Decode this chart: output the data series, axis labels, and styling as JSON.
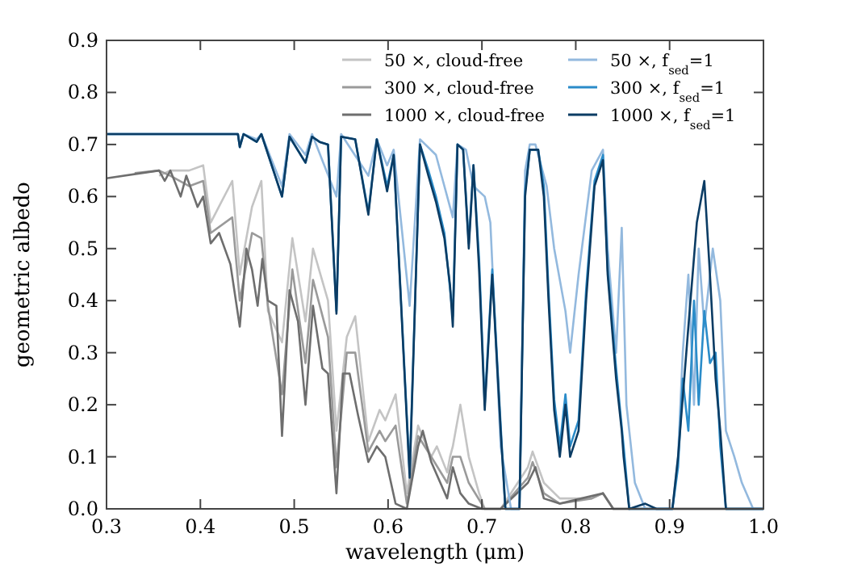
{
  "chart_data": {
    "type": "line",
    "xlabel": "wavelength (μm)",
    "ylabel": "geometric albedo",
    "xlim": [
      0.3,
      1.0
    ],
    "ylim": [
      0.0,
      0.9
    ],
    "xticks": [
      {
        "value": 0.3,
        "label": "0.3"
      },
      {
        "value": 0.4,
        "label": "0.4"
      },
      {
        "value": 0.5,
        "label": "0.5"
      },
      {
        "value": 0.6,
        "label": "0.6"
      },
      {
        "value": 0.7,
        "label": "0.7"
      },
      {
        "value": 0.8,
        "label": "0.8"
      },
      {
        "value": 0.9,
        "label": "0.9"
      },
      {
        "value": 1.0,
        "label": "1.0"
      }
    ],
    "yticks": [
      {
        "value": 0,
        "label": "0.0"
      },
      {
        "value": 0.1,
        "label": "0.1"
      },
      {
        "value": 0.2,
        "label": "0.2"
      },
      {
        "value": 0.3,
        "label": "0.3"
      },
      {
        "value": 0.4,
        "label": "0.4"
      },
      {
        "value": 0.5,
        "label": "0.5"
      },
      {
        "value": 0.6,
        "label": "0.6"
      },
      {
        "value": 0.7,
        "label": "0.7"
      },
      {
        "value": 0.8,
        "label": "0.8"
      },
      {
        "value": 0.9,
        "label": "0.9"
      }
    ],
    "grid": false,
    "legend": "top right",
    "marker": "none",
    "line_style": "solid",
    "series": [
      {
        "name": "50 ×, cloud-free",
        "color": "#c4c4c4",
        "x": [
          0.356,
          0.368,
          0.388,
          0.403,
          0.411,
          0.434,
          0.442,
          0.455,
          0.465,
          0.472,
          0.487,
          0.498,
          0.512,
          0.52,
          0.536,
          0.545,
          0.556,
          0.565,
          0.579,
          0.591,
          0.597,
          0.608,
          0.62,
          0.632,
          0.646,
          0.652,
          0.663,
          0.666,
          0.669,
          0.677,
          0.686,
          0.697,
          0.703,
          0.72,
          0.749,
          0.754,
          0.766,
          0.783,
          0.817,
          0.829,
          0.84,
          0.9,
          1.0
        ],
        "values": [
          0.64,
          0.65,
          0.65,
          0.66,
          0.55,
          0.63,
          0.45,
          0.58,
          0.63,
          0.38,
          0.32,
          0.52,
          0.36,
          0.5,
          0.4,
          0.15,
          0.33,
          0.37,
          0.13,
          0.19,
          0.17,
          0.22,
          0.03,
          0.16,
          0.1,
          0.12,
          0.07,
          0.1,
          0.12,
          0.2,
          0.1,
          0.03,
          0.0,
          0.0,
          0.08,
          0.11,
          0.05,
          0.02,
          0.02,
          0.03,
          0.0,
          0.0,
          0.0
        ]
      },
      {
        "name": "300 ×, cloud-free",
        "color": "#9a9a9a",
        "x": [
          0.33,
          0.356,
          0.368,
          0.388,
          0.403,
          0.411,
          0.434,
          0.442,
          0.455,
          0.465,
          0.472,
          0.487,
          0.498,
          0.512,
          0.52,
          0.536,
          0.545,
          0.556,
          0.565,
          0.579,
          0.591,
          0.597,
          0.608,
          0.62,
          0.632,
          0.646,
          0.663,
          0.669,
          0.677,
          0.686,
          0.703,
          0.72,
          0.749,
          0.754,
          0.766,
          0.783,
          0.817,
          0.829,
          0.84,
          0.9,
          1.0
        ],
        "values": [
          0.645,
          0.65,
          0.64,
          0.62,
          0.63,
          0.53,
          0.56,
          0.4,
          0.53,
          0.52,
          0.39,
          0.22,
          0.46,
          0.28,
          0.44,
          0.33,
          0.08,
          0.3,
          0.3,
          0.11,
          0.15,
          0.13,
          0.16,
          0.01,
          0.14,
          0.1,
          0.05,
          0.1,
          0.1,
          0.05,
          0.0,
          0.0,
          0.06,
          0.09,
          0.03,
          0.01,
          0.02,
          0.03,
          0.0,
          0.0,
          0.0
        ]
      },
      {
        "name": "1000 ×, cloud-free",
        "color": "#6e6e6e",
        "x": [
          0.3,
          0.356,
          0.362,
          0.368,
          0.379,
          0.385,
          0.397,
          0.403,
          0.411,
          0.42,
          0.432,
          0.442,
          0.449,
          0.455,
          0.461,
          0.466,
          0.472,
          0.481,
          0.487,
          0.495,
          0.504,
          0.512,
          0.52,
          0.53,
          0.536,
          0.545,
          0.552,
          0.559,
          0.568,
          0.579,
          0.588,
          0.597,
          0.608,
          0.62,
          0.632,
          0.637,
          0.646,
          0.663,
          0.669,
          0.677,
          0.686,
          0.7,
          0.72,
          0.749,
          0.757,
          0.766,
          0.783,
          0.806,
          0.829,
          0.84,
          0.9,
          1.0
        ],
        "values": [
          0.635,
          0.65,
          0.63,
          0.65,
          0.6,
          0.64,
          0.58,
          0.6,
          0.51,
          0.53,
          0.47,
          0.35,
          0.5,
          0.46,
          0.39,
          0.48,
          0.4,
          0.39,
          0.14,
          0.42,
          0.36,
          0.2,
          0.39,
          0.27,
          0.26,
          0.03,
          0.26,
          0.26,
          0.18,
          0.09,
          0.12,
          0.1,
          0.01,
          0.0,
          0.12,
          0.15,
          0.09,
          0.02,
          0.08,
          0.03,
          0.01,
          0.0,
          0.0,
          0.05,
          0.08,
          0.02,
          0.01,
          0.02,
          0.03,
          0.0,
          0.0,
          0.0
        ]
      },
      {
        "name": "50 ×, f$_{sed}$=1",
        "color": "#93b9de",
        "x": [
          0.3,
          0.44,
          0.442,
          0.446,
          0.46,
          0.465,
          0.487,
          0.495,
          0.512,
          0.519,
          0.545,
          0.55,
          0.579,
          0.588,
          0.599,
          0.606,
          0.623,
          0.634,
          0.651,
          0.669,
          0.674,
          0.683,
          0.691,
          0.703,
          0.709,
          0.72,
          0.731,
          0.74,
          0.746,
          0.751,
          0.757,
          0.769,
          0.777,
          0.789,
          0.794,
          0.803,
          0.817,
          0.829,
          0.834,
          0.843,
          0.849,
          0.854,
          0.863,
          0.874,
          0.903,
          0.909,
          0.914,
          0.92,
          0.926,
          0.931,
          0.937,
          0.946,
          0.954,
          0.96,
          0.969,
          0.977,
          0.989,
          1.0
        ],
        "values": [
          0.72,
          0.72,
          0.7,
          0.72,
          0.71,
          0.72,
          0.62,
          0.72,
          0.68,
          0.72,
          0.6,
          0.72,
          0.64,
          0.71,
          0.66,
          0.69,
          0.39,
          0.71,
          0.68,
          0.56,
          0.7,
          0.69,
          0.62,
          0.6,
          0.55,
          0.12,
          0.0,
          0.0,
          0.65,
          0.7,
          0.7,
          0.62,
          0.5,
          0.38,
          0.3,
          0.45,
          0.65,
          0.69,
          0.5,
          0.3,
          0.54,
          0.2,
          0.05,
          0.0,
          0.0,
          0.1,
          0.3,
          0.45,
          0.2,
          0.5,
          0.35,
          0.5,
          0.4,
          0.15,
          0.1,
          0.05,
          0.0,
          0.0
        ]
      },
      {
        "name": "300 ×, f$_{sed}$=1",
        "color": "#2b8cc9",
        "x": [
          0.3,
          0.44,
          0.442,
          0.446,
          0.46,
          0.465,
          0.487,
          0.495,
          0.512,
          0.519,
          0.527,
          0.536,
          0.545,
          0.55,
          0.565,
          0.579,
          0.588,
          0.599,
          0.606,
          0.623,
          0.634,
          0.643,
          0.651,
          0.66,
          0.669,
          0.674,
          0.68,
          0.686,
          0.691,
          0.697,
          0.703,
          0.711,
          0.72,
          0.725,
          0.74,
          0.746,
          0.751,
          0.76,
          0.766,
          0.771,
          0.777,
          0.783,
          0.789,
          0.794,
          0.803,
          0.811,
          0.82,
          0.829,
          0.834,
          0.843,
          0.851,
          0.857,
          0.874,
          0.903,
          0.909,
          0.914,
          0.92,
          0.926,
          0.931,
          0.937,
          0.943,
          0.949,
          0.954,
          0.96,
          1.0
        ],
        "values": [
          0.72,
          0.72,
          0.695,
          0.72,
          0.705,
          0.72,
          0.6,
          0.715,
          0.665,
          0.715,
          0.705,
          0.7,
          0.38,
          0.715,
          0.71,
          0.57,
          0.71,
          0.62,
          0.68,
          0.07,
          0.7,
          0.65,
          0.6,
          0.53,
          0.37,
          0.7,
          0.69,
          0.51,
          0.66,
          0.48,
          0.2,
          0.46,
          0.16,
          0.0,
          0.0,
          0.61,
          0.69,
          0.69,
          0.62,
          0.42,
          0.21,
          0.12,
          0.22,
          0.12,
          0.17,
          0.42,
          0.63,
          0.68,
          0.46,
          0.27,
          0.12,
          0.0,
          0.0,
          0.0,
          0.08,
          0.25,
          0.15,
          0.4,
          0.2,
          0.38,
          0.28,
          0.3,
          0.12,
          0.0,
          0.0
        ]
      },
      {
        "name": "1000 ×, f$_{sed}$=1",
        "color": "#0b3c64",
        "x": [
          0.3,
          0.44,
          0.442,
          0.446,
          0.46,
          0.465,
          0.487,
          0.495,
          0.512,
          0.519,
          0.527,
          0.536,
          0.545,
          0.55,
          0.565,
          0.579,
          0.588,
          0.599,
          0.606,
          0.623,
          0.634,
          0.643,
          0.651,
          0.66,
          0.666,
          0.669,
          0.674,
          0.68,
          0.686,
          0.691,
          0.697,
          0.703,
          0.711,
          0.72,
          0.725,
          0.74,
          0.746,
          0.751,
          0.76,
          0.766,
          0.771,
          0.777,
          0.783,
          0.789,
          0.794,
          0.803,
          0.811,
          0.82,
          0.829,
          0.834,
          0.843,
          0.849,
          0.851,
          0.857,
          0.874,
          0.886,
          0.903,
          0.909,
          0.92,
          0.929,
          0.937,
          0.943,
          0.949,
          0.954,
          0.96,
          1.0
        ],
        "values": [
          0.72,
          0.72,
          0.695,
          0.72,
          0.705,
          0.72,
          0.6,
          0.715,
          0.665,
          0.715,
          0.705,
          0.7,
          0.375,
          0.715,
          0.71,
          0.565,
          0.71,
          0.61,
          0.68,
          0.06,
          0.7,
          0.64,
          0.59,
          0.52,
          0.43,
          0.35,
          0.7,
          0.69,
          0.5,
          0.66,
          0.46,
          0.19,
          0.45,
          0.15,
          0.0,
          0.0,
          0.6,
          0.69,
          0.69,
          0.6,
          0.4,
          0.19,
          0.1,
          0.2,
          0.1,
          0.15,
          0.4,
          0.62,
          0.67,
          0.45,
          0.25,
          0.15,
          0.1,
          0.0,
          0.01,
          0.0,
          0.0,
          0.1,
          0.35,
          0.55,
          0.63,
          0.45,
          0.25,
          0.15,
          0.0,
          0.0
        ]
      }
    ]
  }
}
